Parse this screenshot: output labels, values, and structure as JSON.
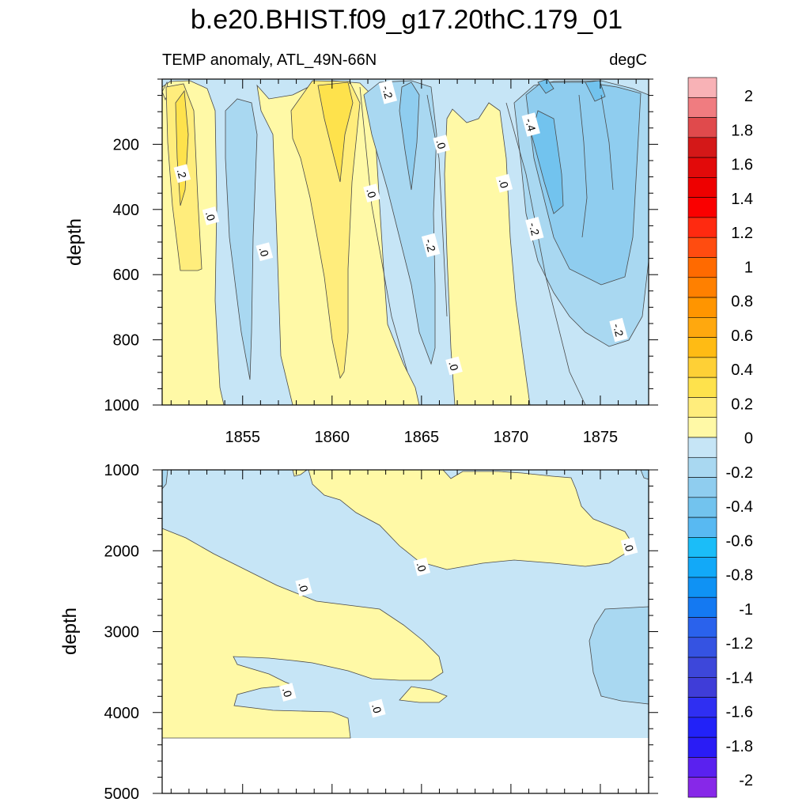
{
  "chart_data": [
    {
      "type": "contour",
      "title": "b.e20.BHIST.f09_g17.20thC.179_01",
      "left_label": "TEMP anomaly, ATL_49N-66N",
      "right_label": "degC",
      "ylabel": "depth",
      "xlim": [
        1850.5,
        1877.7
      ],
      "ylim": [
        0,
        1000
      ],
      "y_inverted": true,
      "yticks": [
        200,
        400,
        600,
        800,
        1000
      ],
      "xticks": [
        1855,
        1860,
        1865,
        1870,
        1875
      ],
      "contour_labels": [
        {
          "text": ".2",
          "x": 1851.6,
          "y": 290
        },
        {
          "text": ".0",
          "x": 1853.2,
          "y": 420
        },
        {
          "text": ".0",
          "x": 1856.2,
          "y": 530
        },
        {
          "text": ".0",
          "x": 1862.2,
          "y": 350
        },
        {
          "text": "-.2",
          "x": 1863.1,
          "y": 40
        },
        {
          "text": "-.2",
          "x": 1865.5,
          "y": 510
        },
        {
          "text": ".0",
          "x": 1866.1,
          "y": 200
        },
        {
          "text": ".0",
          "x": 1866.8,
          "y": 880
        },
        {
          "text": ".0",
          "x": 1869.6,
          "y": 320
        },
        {
          "text": "-.4",
          "x": 1871.1,
          "y": 140
        },
        {
          "text": "-.2",
          "x": 1871.3,
          "y": 460
        },
        {
          "text": "-.2",
          "x": 1876.0,
          "y": 770
        }
      ]
    },
    {
      "type": "contour",
      "ylabel": "depth",
      "xlim": [
        1850.5,
        1877.7
      ],
      "ylim": [
        1000,
        5000
      ],
      "y_inverted": true,
      "yticks": [
        1000,
        2000,
        3000,
        4000,
        5000
      ],
      "contour_labels": [
        {
          "text": ".0",
          "x": 1858.4,
          "y": 2450
        },
        {
          "text": ".0",
          "x": 1865.0,
          "y": 2200
        },
        {
          "text": ".0",
          "x": 1876.6,
          "y": 1950
        },
        {
          "text": ".0",
          "x": 1857.5,
          "y": 3750
        },
        {
          "text": ".0",
          "x": 1862.5,
          "y": 3950
        }
      ]
    }
  ],
  "colorbar": {
    "levels": [
      "2",
      "1.8",
      "1.6",
      "1.4",
      "1.2",
      "1",
      "0.8",
      "0.6",
      "0.4",
      "0.2",
      "0",
      "-0.2",
      "-0.4",
      "-0.6",
      "-0.8",
      "-1",
      "-1.2",
      "-1.4",
      "-1.6",
      "-1.8",
      "-2"
    ],
    "colors": [
      "#f8b2b6",
      "#f07c80",
      "#e04a4c",
      "#d41818",
      "#e20a0a",
      "#ee0000",
      "#fa0000",
      "#ff2a10",
      "#ff4c10",
      "#ff6a00",
      "#ff8000",
      "#ff9500",
      "#ffa80e",
      "#ffbb14",
      "#fed036",
      "#fee24c",
      "#ffed7c",
      "#fff9a6",
      "#c6e5f6",
      "#a9d8f1",
      "#8fcdef",
      "#72c3ee",
      "#58b9f2",
      "#1bbdf8",
      "#12a9f8",
      "#0f92f4",
      "#1479f2",
      "#2a62ec",
      "#3553e2",
      "#3d47da",
      "#3f3dd8",
      "#2f2ff2",
      "#2222f8",
      "#2a1cf5",
      "#5a21ef",
      "#8728e8"
    ]
  }
}
